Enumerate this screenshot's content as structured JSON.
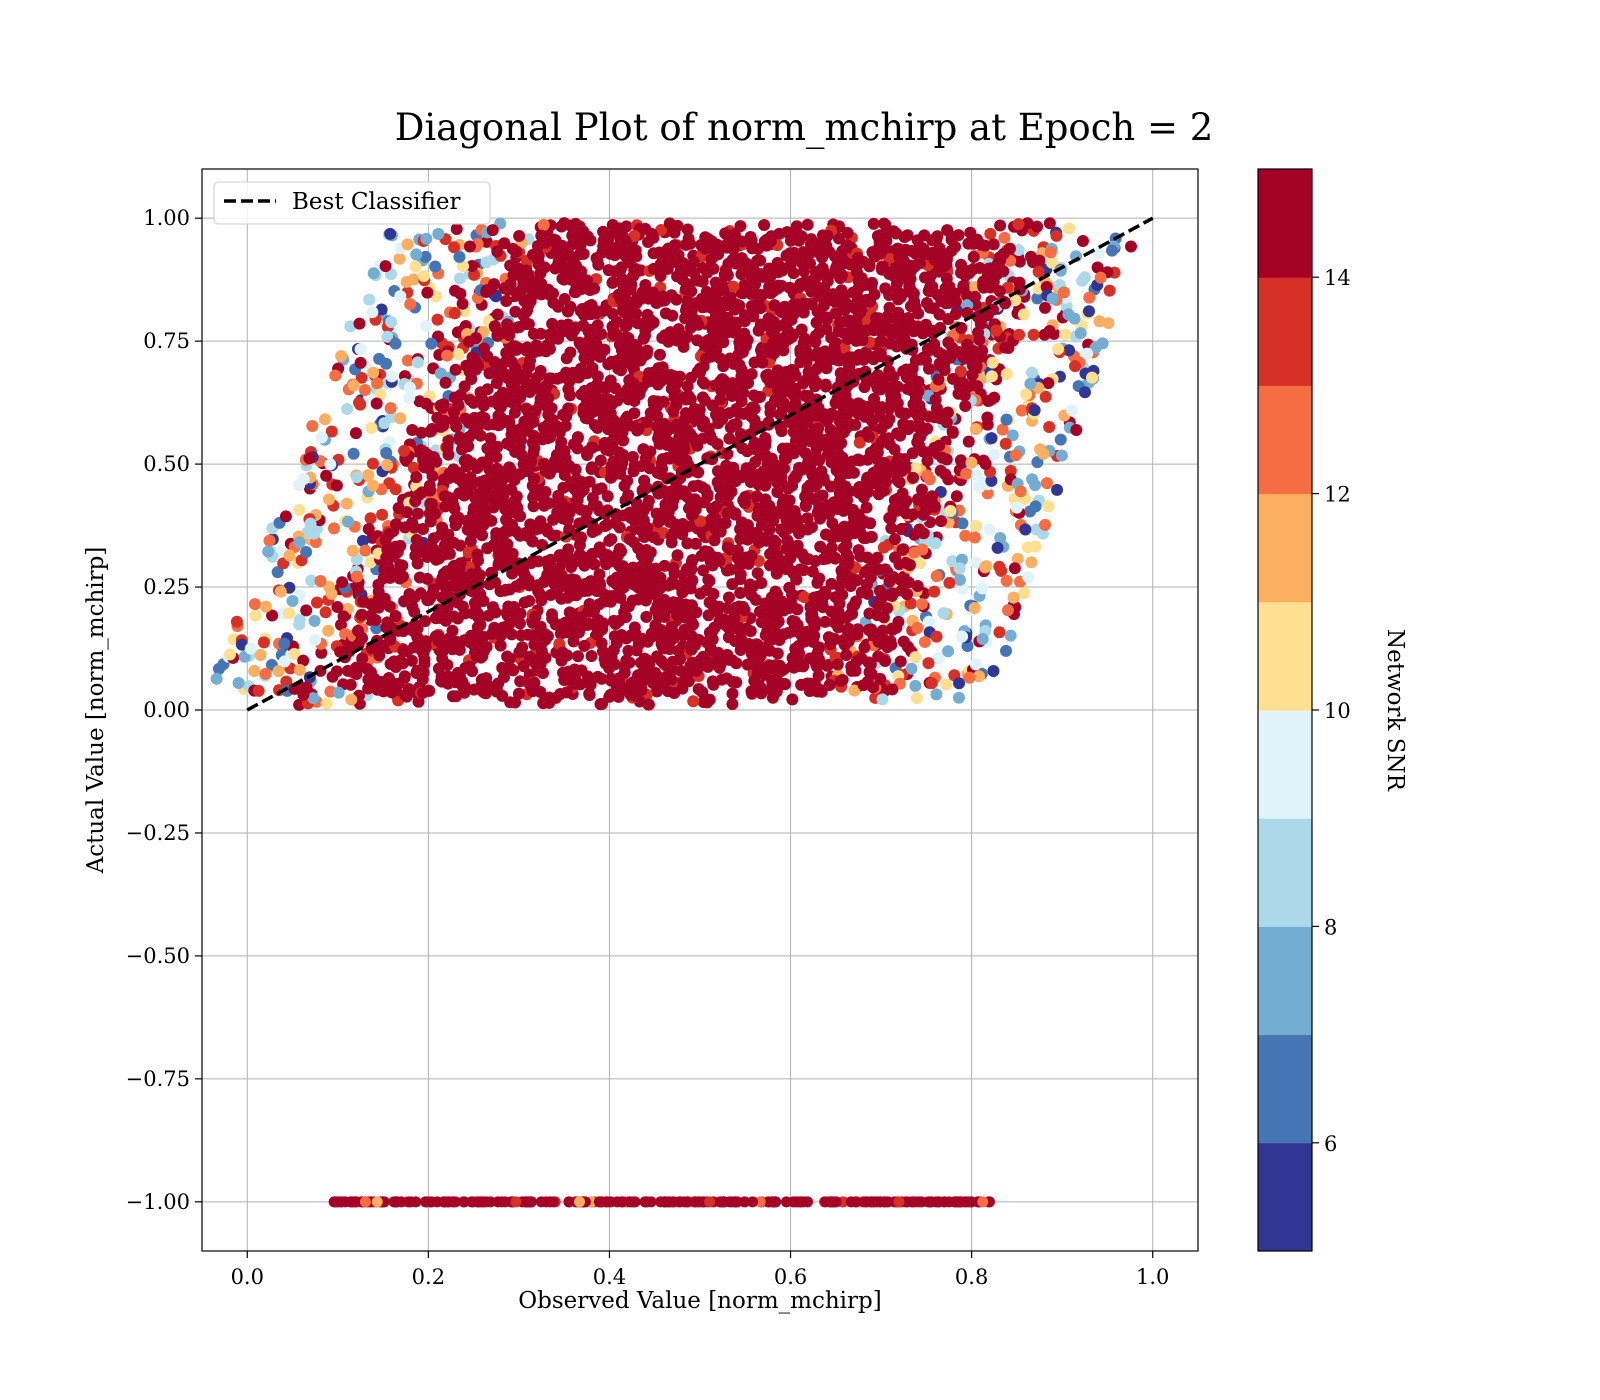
{
  "chart_data": {
    "type": "scatter",
    "title": "Diagonal Plot of norm_mchirp at Epoch = 2",
    "xlabel": "Observed Value [norm_mchirp]",
    "ylabel": "Actual Value [norm_mchirp]",
    "xlim": [
      -0.05,
      1.05
    ],
    "ylim": [
      -1.1,
      1.1
    ],
    "xticks": [
      0.0,
      0.2,
      0.4,
      0.6,
      0.8,
      1.0
    ],
    "xtick_labels": [
      "0.0",
      "0.2",
      "0.4",
      "0.6",
      "0.8",
      "1.0"
    ],
    "yticks": [
      1.0,
      0.75,
      0.5,
      0.25,
      0.0,
      -0.25,
      -0.5,
      -0.75,
      -1.0
    ],
    "ytick_labels": [
      "1.00",
      "0.75",
      "0.50",
      "0.25",
      "0.00",
      "−0.25",
      "−0.50",
      "−0.75",
      "−1.00"
    ],
    "grid": true,
    "legend": {
      "position": "top-left",
      "entries": [
        {
          "label": "Best Classifier",
          "style": "dashed",
          "color": "#000000"
        }
      ]
    },
    "reference_line": {
      "name": "Best Classifier",
      "x": [
        0.0,
        1.0
      ],
      "y": [
        0.0,
        1.0
      ]
    },
    "density_region": {
      "description_points_x": [
        0.05,
        0.28,
        0.6,
        0.89,
        0.72
      ],
      "y_range": [
        0.0,
        1.0
      ]
    },
    "bottom_row": {
      "y": -1.0,
      "x_range": [
        0.095,
        0.82
      ]
    },
    "colorbar": {
      "label": "Network SNR",
      "range": [
        5,
        15
      ],
      "ticks": [
        6,
        8,
        10,
        12,
        14
      ],
      "tick_labels": [
        "6",
        "8",
        "10",
        "12",
        "14"
      ],
      "colors": [
        "#313695",
        "#4575b4",
        "#74add1",
        "#abd9e9",
        "#e0f3f8",
        "#fee090",
        "#fdae61",
        "#f46d43",
        "#d73027",
        "#a50026"
      ]
    }
  }
}
